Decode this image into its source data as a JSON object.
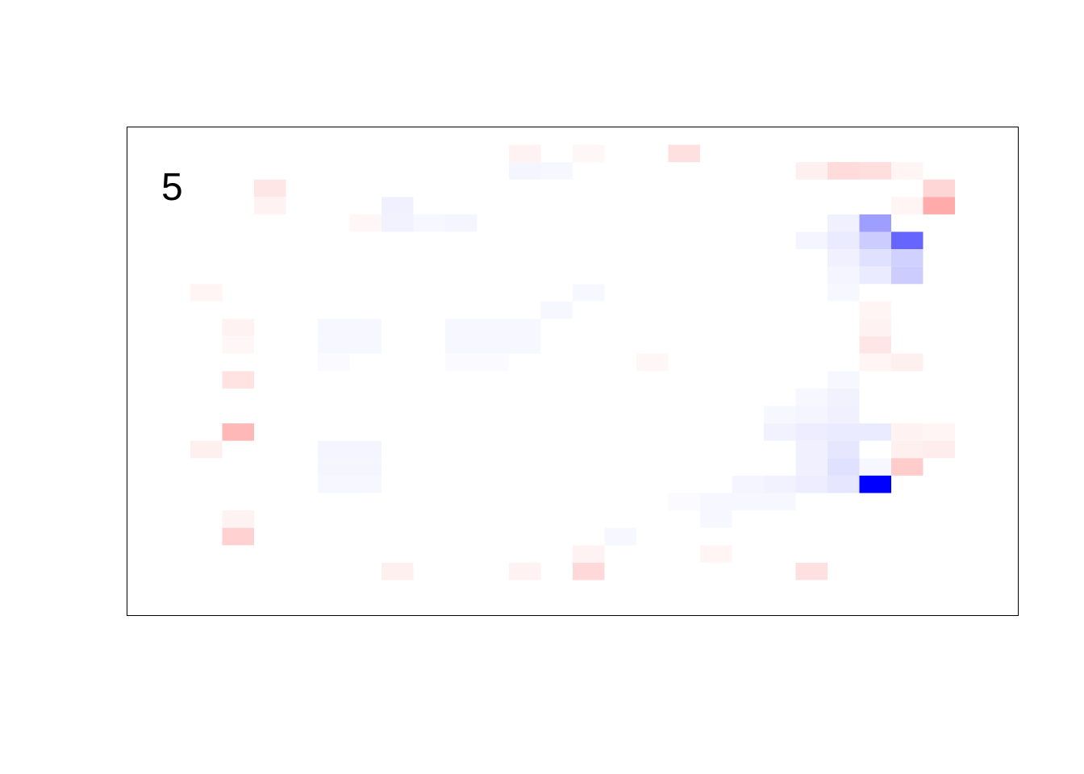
{
  "chart_data": {
    "type": "heatmap",
    "panel_label": "5",
    "ncols": 25,
    "nrows": 26,
    "value_range": [
      -1,
      1
    ],
    "colors": {
      "negative": "#0000ff",
      "zero": "#ffffff",
      "positive": "#ff0000"
    },
    "cells": [
      [
        12,
        1,
        0.05
      ],
      [
        14,
        1,
        0.03
      ],
      [
        17,
        1,
        0.12
      ],
      [
        12,
        2,
        -0.04
      ],
      [
        13,
        2,
        -0.03
      ],
      [
        21,
        2,
        0.06
      ],
      [
        22,
        2,
        0.14
      ],
      [
        23,
        2,
        0.13
      ],
      [
        24,
        2,
        0.04
      ],
      [
        4,
        3,
        0.1
      ],
      [
        25,
        3,
        0.16
      ],
      [
        4,
        4,
        0.05
      ],
      [
        8,
        4,
        -0.06
      ],
      [
        24,
        4,
        0.04
      ],
      [
        25,
        4,
        0.33
      ],
      [
        7,
        5,
        0.03
      ],
      [
        8,
        5,
        -0.05
      ],
      [
        9,
        5,
        -0.03
      ],
      [
        10,
        5,
        -0.04
      ],
      [
        22,
        5,
        -0.06
      ],
      [
        23,
        5,
        -0.38
      ],
      [
        23,
        6,
        -0.2
      ],
      [
        24,
        6,
        -0.6
      ],
      [
        22,
        6,
        -0.08
      ],
      [
        21,
        6,
        -0.04
      ],
      [
        23,
        7,
        -0.12
      ],
      [
        24,
        7,
        -0.18
      ],
      [
        22,
        7,
        -0.06
      ],
      [
        24,
        8,
        -0.2
      ],
      [
        23,
        8,
        -0.08
      ],
      [
        22,
        8,
        -0.04
      ],
      [
        2,
        9,
        0.04
      ],
      [
        14,
        9,
        -0.03
      ],
      [
        22,
        9,
        -0.03
      ],
      [
        13,
        10,
        -0.03
      ],
      [
        23,
        10,
        0.04
      ],
      [
        3,
        11,
        0.05
      ],
      [
        6,
        11,
        -0.03
      ],
      [
        7,
        11,
        -0.03
      ],
      [
        10,
        11,
        -0.03
      ],
      [
        11,
        11,
        -0.03
      ],
      [
        12,
        11,
        -0.03
      ],
      [
        23,
        11,
        0.05
      ],
      [
        3,
        12,
        0.03
      ],
      [
        6,
        12,
        -0.03
      ],
      [
        7,
        12,
        -0.03
      ],
      [
        10,
        12,
        -0.03
      ],
      [
        11,
        12,
        -0.03
      ],
      [
        12,
        12,
        -0.03
      ],
      [
        23,
        12,
        0.1
      ],
      [
        6,
        13,
        -0.02
      ],
      [
        10,
        13,
        -0.02
      ],
      [
        11,
        13,
        -0.02
      ],
      [
        16,
        13,
        0.03
      ],
      [
        23,
        13,
        0.04
      ],
      [
        24,
        13,
        0.06
      ],
      [
        3,
        14,
        0.11
      ],
      [
        22,
        14,
        -0.03
      ],
      [
        21,
        15,
        -0.03
      ],
      [
        22,
        15,
        -0.05
      ],
      [
        22,
        16,
        -0.06
      ],
      [
        21,
        16,
        -0.04
      ],
      [
        20,
        16,
        -0.03
      ],
      [
        3,
        17,
        0.28
      ],
      [
        20,
        17,
        -0.05
      ],
      [
        21,
        17,
        -0.07
      ],
      [
        22,
        17,
        -0.08
      ],
      [
        23,
        17,
        -0.08
      ],
      [
        24,
        17,
        0.05
      ],
      [
        25,
        17,
        0.04
      ],
      [
        2,
        18,
        0.06
      ],
      [
        6,
        18,
        -0.04
      ],
      [
        7,
        18,
        -0.04
      ],
      [
        21,
        18,
        -0.06
      ],
      [
        22,
        18,
        -0.1
      ],
      [
        24,
        18,
        0.06
      ],
      [
        25,
        18,
        0.07
      ],
      [
        6,
        19,
        -0.04
      ],
      [
        7,
        19,
        -0.04
      ],
      [
        21,
        19,
        -0.06
      ],
      [
        22,
        19,
        -0.12
      ],
      [
        23,
        19,
        -0.03
      ],
      [
        24,
        19,
        0.2
      ],
      [
        6,
        20,
        -0.03
      ],
      [
        7,
        20,
        -0.03
      ],
      [
        19,
        20,
        -0.04
      ],
      [
        20,
        20,
        -0.05
      ],
      [
        21,
        20,
        -0.07
      ],
      [
        22,
        20,
        -0.1
      ],
      [
        23,
        20,
        -1.0
      ],
      [
        17,
        21,
        -0.02
      ],
      [
        18,
        21,
        -0.03
      ],
      [
        19,
        21,
        -0.03
      ],
      [
        20,
        21,
        -0.03
      ],
      [
        3,
        22,
        0.05
      ],
      [
        18,
        22,
        -0.03
      ],
      [
        3,
        23,
        0.18
      ],
      [
        15,
        23,
        -0.03
      ],
      [
        18,
        24,
        0.04
      ],
      [
        14,
        24,
        0.05
      ],
      [
        8,
        25,
        0.06
      ],
      [
        12,
        25,
        0.05
      ],
      [
        14,
        25,
        0.15
      ],
      [
        21,
        25,
        0.12
      ]
    ],
    "xlabel": "",
    "ylabel": ""
  }
}
